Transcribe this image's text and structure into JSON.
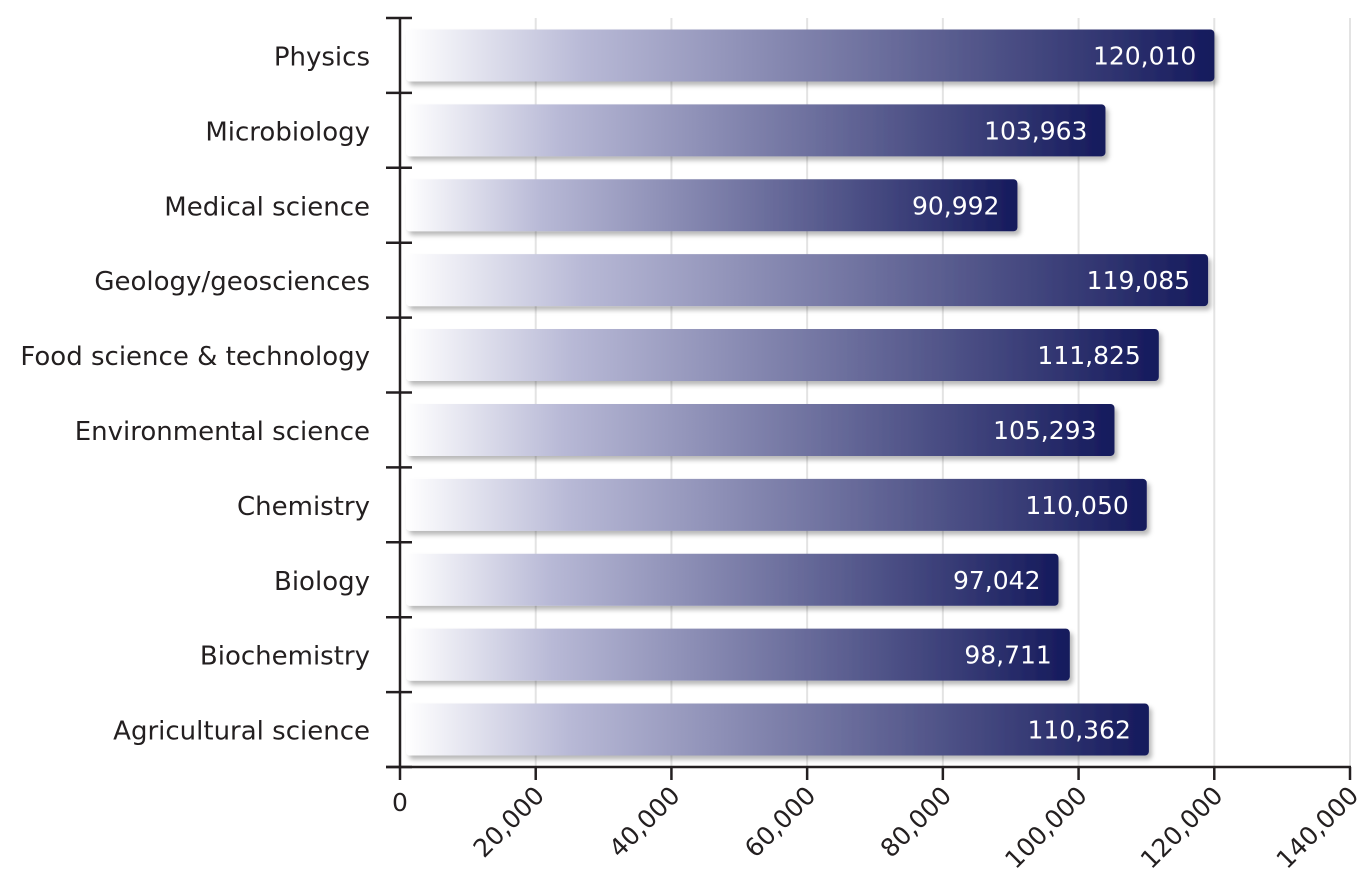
{
  "chart_data": {
    "type": "bar",
    "orientation": "horizontal",
    "categories": [
      "Physics",
      "Microbiology",
      "Medical science",
      "Geology/geosciences",
      "Food science & technology",
      "Environmental science",
      "Chemistry",
      "Biology",
      "Biochemistry",
      "Agricultural science"
    ],
    "values": [
      120010,
      103963,
      90992,
      119085,
      111825,
      105293,
      110050,
      97042,
      98711,
      110362
    ],
    "value_labels": [
      "120,010",
      "103,963",
      "90,992",
      "119,085",
      "111,825",
      "105,293",
      "110,050",
      "97,042",
      "98,711",
      "110,362"
    ],
    "xlim": [
      0,
      140000
    ],
    "x_ticks": [
      0,
      20000,
      40000,
      60000,
      80000,
      100000,
      120000,
      140000
    ],
    "x_tick_labels": [
      "0",
      "20,000",
      "40,000",
      "60,000",
      "80,000",
      "100,000",
      "120,000",
      "140,000"
    ],
    "grid": "vertical",
    "colors": {
      "bar_start": "#ffffff",
      "bar_mid": "#b8b9d6",
      "bar_end": "#151a5c",
      "grid": "#e3e3e3",
      "axis": "#231f20",
      "text": "#231f20",
      "value_text": "#ffffff"
    }
  }
}
